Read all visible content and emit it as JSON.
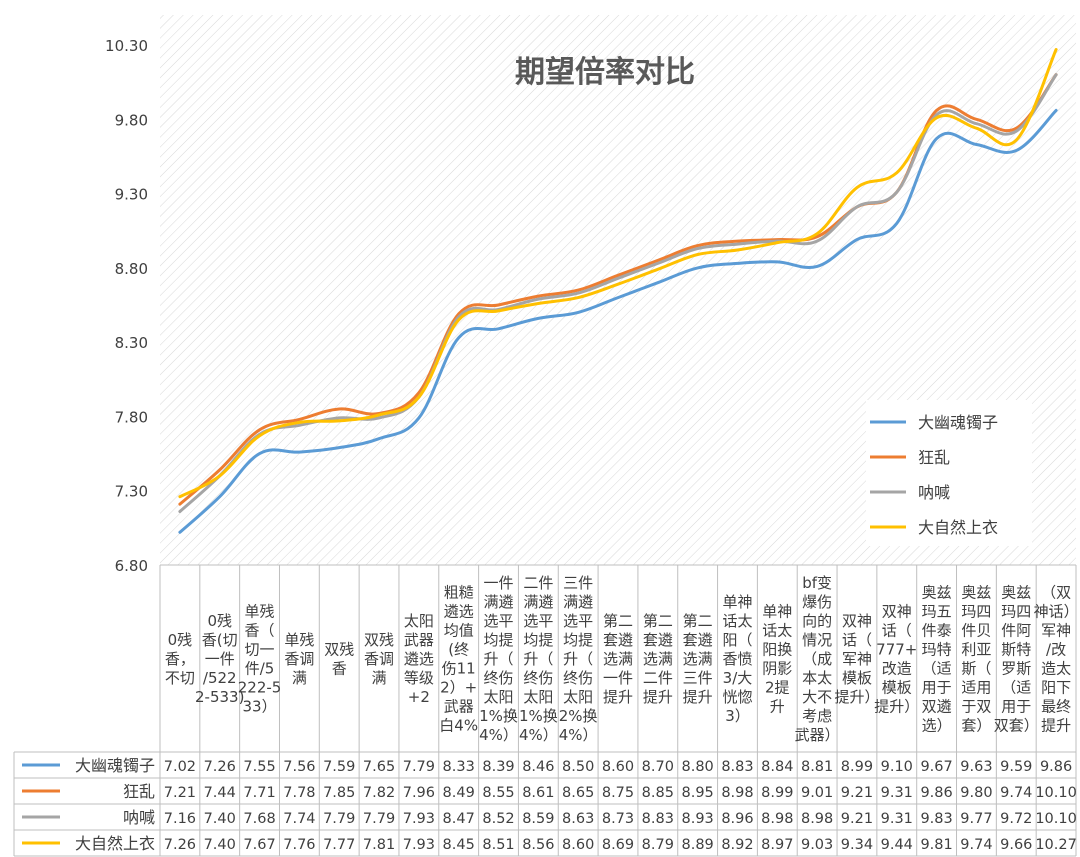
{
  "chart_data": {
    "type": "line",
    "title": "期望倍率对比",
    "xlabel": "",
    "ylabel": "",
    "ylim": [
      6.8,
      10.3
    ],
    "yticks": [
      "6.80",
      "7.30",
      "7.80",
      "8.30",
      "8.80",
      "9.30",
      "9.80",
      "10.30"
    ],
    "grid": "diagonal-hatch",
    "legend_position": "right",
    "categories": [
      "0残香，不切",
      "0残香(切一件/5222-533)",
      "单残香（切一件/5222-533)",
      "单残香调满",
      "双残香",
      "双残香调满",
      "太阳武器遴选等级+2",
      "粗糙遴选均值(终伤112）+武器白4%",
      "一件满遴选平均提升（终伤太阳1%换4%）",
      "二件满遴选平均提升（终伤太阳1%换4%）",
      "三件满遴选平均提升（终伤太阳2%换4%）",
      "第二套遴选满一件提升",
      "第二套遴选满二件提升",
      "第二套遴选满三件提升",
      "单神话太阳（香愤3/大恍惚3）",
      "单神话太阳换阴影2提升",
      "bf变爆伤向的情况（成本太大不考虑武器）",
      "双神话（军神模板提升）",
      "双神话（777+改造模板提升）",
      "奥兹玛五件泰玛特（适用于双遴选）",
      "奥兹玛四件贝利亚斯（适用于双套）",
      "奥兹玛四件阿斯特罗斯（适用于双套）",
      "（双神话）军神/改造太阳下最终提升"
    ],
    "category_lines": [
      [
        "0残",
        "香，",
        "不切"
      ],
      [
        "0残",
        "香(切",
        "一件",
        "/522",
        "2-533)"
      ],
      [
        "单残",
        "香（",
        "切一",
        "件/5",
        "222-5",
        "33）"
      ],
      [
        "单残",
        "香调",
        "满"
      ],
      [
        "双残",
        "香"
      ],
      [
        "双残",
        "香调",
        "满"
      ],
      [
        "太阳",
        "武器",
        "遴选",
        "等级",
        "+2"
      ],
      [
        "粗糙",
        "遴选",
        "均值",
        "(终",
        "伤11",
        "2）+",
        "武器",
        "白4%"
      ],
      [
        "一件",
        "满遴",
        "选平",
        "均提",
        "升（",
        "终伤",
        "太阳",
        "1%换",
        "4%）"
      ],
      [
        "二件",
        "满遴",
        "选平",
        "均提",
        "升（",
        "终伤",
        "太阳",
        "1%换",
        "4%）"
      ],
      [
        "三件",
        "满遴",
        "选平",
        "均提",
        "升（",
        "终伤",
        "太阳",
        "2%换",
        "4%）"
      ],
      [
        "第二",
        "套遴",
        "选满",
        "一件",
        "提升"
      ],
      [
        "第二",
        "套遴",
        "选满",
        "二件",
        "提升"
      ],
      [
        "第二",
        "套遴",
        "选满",
        "三件",
        "提升"
      ],
      [
        "单神",
        "话太",
        "阳（",
        "香愤",
        "3/大",
        "恍惚",
        "3）"
      ],
      [
        "单神",
        "话太",
        "阳换",
        "阴影",
        "2提",
        "升"
      ],
      [
        "bf变",
        "爆伤",
        "向的",
        "情况",
        "（成",
        "本太",
        "大不",
        "考虑",
        "武器）"
      ],
      [
        "双神",
        "话（",
        "军神",
        "模板",
        "提升）"
      ],
      [
        "双神",
        "话（",
        "777+",
        "改造",
        "模板",
        "提升）"
      ],
      [
        "奥兹",
        "玛五",
        "件泰",
        "玛特",
        "（适",
        "用于",
        "双遴",
        "选）"
      ],
      [
        "奥兹",
        "玛四",
        "件贝",
        "利亚",
        "斯（",
        "适用",
        "于双",
        "套）"
      ],
      [
        "奥兹",
        "玛四",
        "件阿",
        "斯特",
        "罗斯",
        "（适",
        "用于",
        "双套）"
      ],
      [
        "（双",
        "神话）",
        "军神",
        "/改",
        "造太",
        "阳下",
        "最终",
        "提升"
      ]
    ],
    "series": [
      {
        "name": "大幽魂镯子",
        "color": "#5b9bd5",
        "values": [
          7.02,
          7.26,
          7.55,
          7.56,
          7.59,
          7.65,
          7.79,
          8.33,
          8.39,
          8.46,
          8.5,
          8.6,
          8.7,
          8.8,
          8.83,
          8.84,
          8.81,
          8.99,
          9.1,
          9.67,
          9.63,
          9.59,
          9.86
        ],
        "labels": [
          "7.02",
          "7.26",
          "7.55",
          "7.56",
          "7.59",
          "7.65",
          "7.79",
          "8.33",
          "8.39",
          "8.46",
          "8.50",
          "8.60",
          "8.70",
          "8.80",
          "8.83",
          "8.84",
          "8.81",
          "8.99",
          "9.10",
          "9.67",
          "9.63",
          "9.59",
          "9.86"
        ]
      },
      {
        "name": "狂乱",
        "color": "#ed7d31",
        "values": [
          7.21,
          7.44,
          7.71,
          7.78,
          7.85,
          7.82,
          7.96,
          8.49,
          8.55,
          8.61,
          8.65,
          8.75,
          8.85,
          8.95,
          8.98,
          8.99,
          9.01,
          9.21,
          9.31,
          9.86,
          9.8,
          9.74,
          10.1
        ],
        "labels": [
          "7.21",
          "7.44",
          "7.71",
          "7.78",
          "7.85",
          "7.82",
          "7.96",
          "8.49",
          "8.55",
          "8.61",
          "8.65",
          "8.75",
          "8.85",
          "8.95",
          "8.98",
          "8.99",
          "9.01",
          "9.21",
          "9.31",
          "9.86",
          "9.80",
          "9.74",
          "10.10"
        ]
      },
      {
        "name": "呐喊",
        "color": "#a5a5a5",
        "values": [
          7.16,
          7.4,
          7.68,
          7.74,
          7.79,
          7.79,
          7.93,
          8.47,
          8.52,
          8.59,
          8.63,
          8.73,
          8.83,
          8.93,
          8.96,
          8.98,
          8.98,
          9.21,
          9.31,
          9.83,
          9.77,
          9.72,
          10.1
        ],
        "labels": [
          "7.16",
          "7.40",
          "7.68",
          "7.74",
          "7.79",
          "7.79",
          "7.93",
          "8.47",
          "8.52",
          "8.59",
          "8.63",
          "8.73",
          "8.83",
          "8.93",
          "8.96",
          "8.98",
          "8.98",
          "9.21",
          "9.31",
          "9.83",
          "9.77",
          "9.72",
          "10.10"
        ]
      },
      {
        "name": "大自然上衣",
        "color": "#ffc000",
        "values": [
          7.26,
          7.4,
          7.67,
          7.76,
          7.77,
          7.81,
          7.93,
          8.45,
          8.51,
          8.56,
          8.6,
          8.69,
          8.79,
          8.89,
          8.92,
          8.97,
          9.03,
          9.34,
          9.44,
          9.81,
          9.74,
          9.66,
          10.27
        ],
        "labels": [
          "7.26",
          "7.40",
          "7.67",
          "7.76",
          "7.77",
          "7.81",
          "7.93",
          "8.45",
          "8.51",
          "8.56",
          "8.60",
          "8.69",
          "8.79",
          "8.89",
          "8.92",
          "8.97",
          "9.03",
          "9.34",
          "9.44",
          "9.81",
          "9.74",
          "9.66",
          "10.27"
        ]
      }
    ]
  }
}
